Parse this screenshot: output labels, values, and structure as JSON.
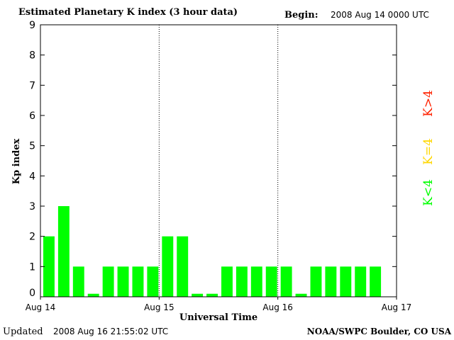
{
  "header": {
    "title": "Estimated Planetary K index (3 hour data)",
    "begin_label": "Begin:",
    "begin_value": "2008 Aug 14 0000 UTC"
  },
  "footer": {
    "updated_label": "Updated",
    "updated_value": "2008 Aug 16 21:55:02 UTC",
    "source": "NOAA/SWPC Boulder, CO USA"
  },
  "colors": {
    "k_below_4": "#00ff00",
    "k_equal_4": "#ffd700",
    "k_above_4": "#ff2200",
    "background": "#ffffff",
    "axis": "#000000"
  },
  "chart_data": {
    "type": "bar",
    "title": "Estimated Planetary K index (3 hour data)",
    "xlabel": "Universal Time",
    "ylabel": "Kp index",
    "ylim": [
      0,
      9
    ],
    "yticks": [
      "0",
      "1",
      "2",
      "3",
      "4",
      "5",
      "6",
      "7",
      "8",
      "9"
    ],
    "xticks": [
      "Aug 14",
      "Aug 15",
      "Aug 16",
      "Aug 17"
    ],
    "day_dividers": true,
    "bins_per_day": 8,
    "total_bins": 24,
    "series": [
      {
        "values": [
          2,
          3,
          1,
          0.1,
          1,
          1,
          1,
          1,
          2,
          2,
          0.1,
          0.1,
          1,
          1,
          1,
          1,
          1,
          0.1,
          1,
          1,
          1,
          1,
          1
        ]
      }
    ],
    "legend": [
      {
        "label": "K<4",
        "color": "#00ff00"
      },
      {
        "label": "K=4",
        "color": "#ffd700"
      },
      {
        "label": "K>4",
        "color": "#ff2200"
      }
    ],
    "legend_placement": "right"
  }
}
